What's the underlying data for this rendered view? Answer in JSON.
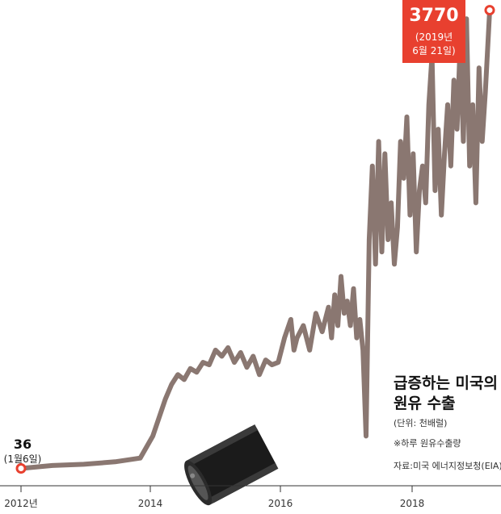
{
  "colors": {
    "line": "#8a7771",
    "accent": "#e8402f",
    "axis": "#333333"
  },
  "chart_data": {
    "type": "line",
    "title_line1": "급증하는 미국의",
    "title_line2": "원유 수출",
    "unit": "(단위: 천배럴)",
    "note": "※하루 원유수출량",
    "source": "자료:미국 에너지정보청(EIA)",
    "x_ticks": [
      "2012년",
      "2014",
      "2016",
      "2018"
    ],
    "x_tick_years": [
      2012,
      2014,
      2016,
      2018
    ],
    "x_range": [
      2011.7,
      2019.6
    ],
    "y_range": [
      0,
      3800
    ],
    "start": {
      "year": 2012.0,
      "value": 36,
      "value_label": "36",
      "date_label": "(1월6일)"
    },
    "end": {
      "year": 2019.47,
      "value": 3770,
      "value_label": "3770",
      "date_label_1": "(2019년",
      "date_label_2": "6월 21일)"
    },
    "series": [
      {
        "x": [
          2012.0,
          2012.5,
          2013.0,
          2013.5,
          2013.9,
          2014.1,
          2014.3,
          2014.4,
          2014.5,
          2014.6,
          2014.7,
          2014.8,
          2014.9,
          2015.0,
          2015.1,
          2015.2,
          2015.3,
          2015.4,
          2015.5,
          2015.6,
          2015.7,
          2015.8,
          2015.9,
          2016.0,
          2016.1,
          2016.2,
          2016.3,
          2016.35,
          2016.4,
          2016.5,
          2016.6,
          2016.7,
          2016.8,
          2016.9,
          2016.95,
          2017.0,
          2017.05,
          2017.1,
          2017.15,
          2017.2,
          2017.25,
          2017.3,
          2017.35,
          2017.4,
          2017.45,
          2017.5,
          2017.55,
          2017.6,
          2017.65,
          2017.7,
          2017.75,
          2017.8,
          2017.85,
          2017.9,
          2017.95,
          2018.0,
          2018.05,
          2018.1,
          2018.15,
          2018.2,
          2018.25,
          2018.3,
          2018.35,
          2018.4,
          2018.45,
          2018.5,
          2018.55,
          2018.6,
          2018.65,
          2018.7,
          2018.75,
          2018.8,
          2018.85,
          2018.9,
          2018.95,
          2019.0,
          2019.05,
          2019.1,
          2019.15,
          2019.2,
          2019.25,
          2019.3,
          2019.35,
          2019.4,
          2019.47
        ],
        "y": [
          36,
          60,
          70,
          90,
          120,
          300,
          600,
          720,
          800,
          760,
          850,
          820,
          900,
          880,
          1000,
          950,
          1020,
          900,
          980,
          860,
          950,
          800,
          920,
          880,
          900,
          1100,
          1250,
          1000,
          1100,
          1200,
          1000,
          1300,
          1150,
          1350,
          1100,
          1450,
          1200,
          1600,
          1300,
          1400,
          1200,
          1500,
          1100,
          1250,
          1000,
          300,
          1900,
          2500,
          1700,
          2700,
          1800,
          2600,
          1900,
          2200,
          1700,
          2000,
          2700,
          2400,
          2900,
          2100,
          2600,
          1800,
          2300,
          2500,
          2200,
          3000,
          3400,
          2300,
          2800,
          2100,
          2600,
          3000,
          2500,
          3200,
          2800,
          3500,
          2700,
          3700,
          2500,
          3000,
          2200,
          3300,
          2700,
          3100,
          3770
        ]
      }
    ]
  }
}
